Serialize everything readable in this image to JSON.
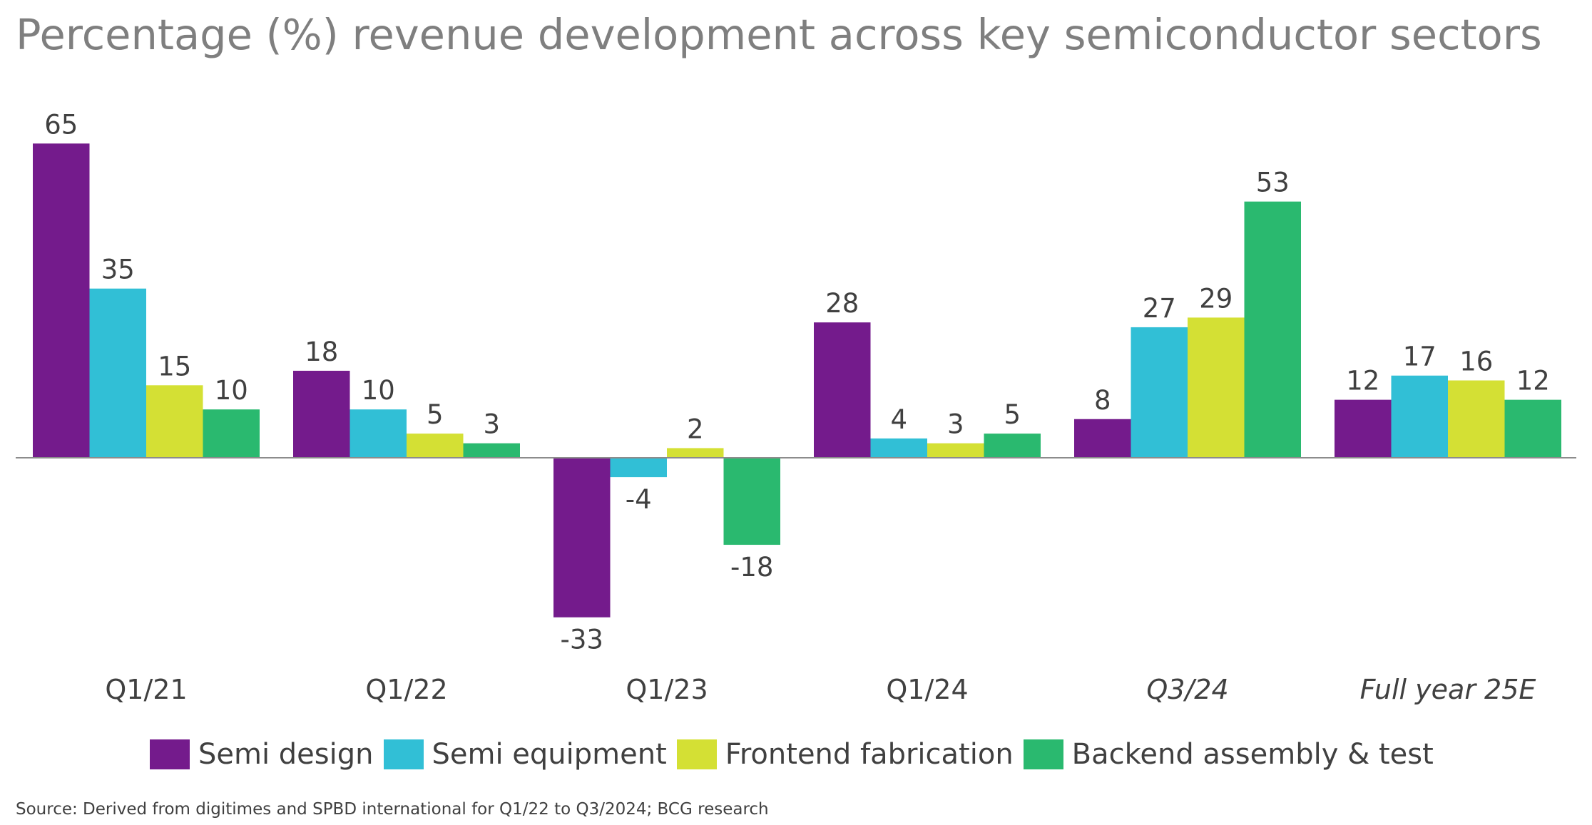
{
  "title": "Percentage (%) revenue development across key semiconductor sectors",
  "source": "Source: Derived from digitimes and SPBD international for Q1/22 to Q3/2024; BCG research",
  "chart_data": {
    "type": "bar",
    "categories": [
      "Q1/21",
      "Q1/22",
      "Q1/23",
      "Q1/24",
      "Q3/24",
      "Full year 25E"
    ],
    "italic_categories": [
      "Q3/24",
      "Full year 25E"
    ],
    "series": [
      {
        "name": "Semi design",
        "color": "#741b8c",
        "values": [
          65,
          18,
          -33,
          28,
          8,
          12
        ]
      },
      {
        "name": "Semi equipment",
        "color": "#31bfd6",
        "values": [
          35,
          10,
          -4,
          4,
          27,
          17
        ]
      },
      {
        "name": "Frontend fabrication",
        "color": "#d4e034",
        "values": [
          15,
          5,
          2,
          3,
          29,
          16
        ]
      },
      {
        "name": "Backend assembly & test",
        "color": "#2ab96f",
        "values": [
          10,
          3,
          -18,
          5,
          53,
          12
        ]
      }
    ],
    "ylim": [
      -33,
      65
    ],
    "grid": false,
    "legend_position": "bottom"
  }
}
